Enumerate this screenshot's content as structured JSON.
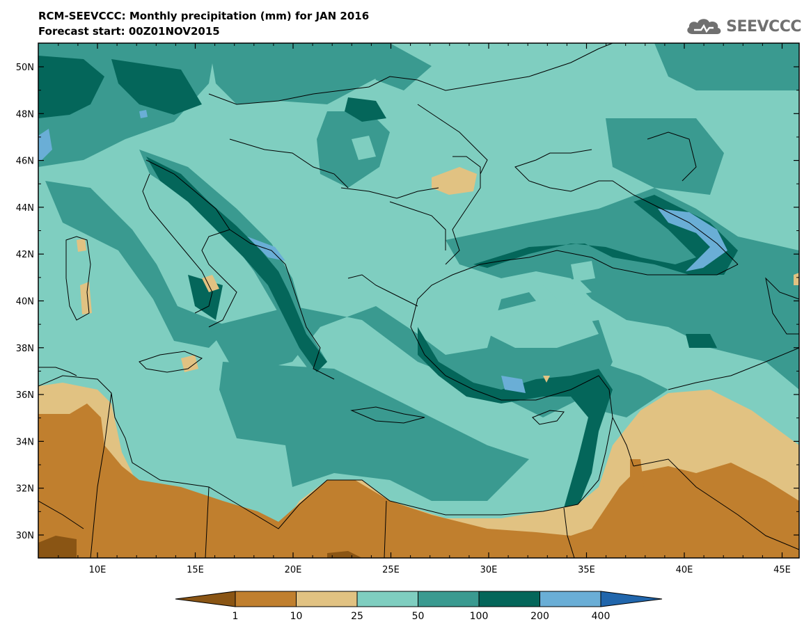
{
  "header": {
    "title": "RCM-SEEVCCC: Monthly precipitation (mm) for JAN 2016",
    "subtitle": "Forecast start: 00Z01NOV2015"
  },
  "logo": {
    "text": "SEEVCCC",
    "icon": "cloud-logo-icon"
  },
  "map": {
    "lat_ticks": [
      "50N",
      "48N",
      "46N",
      "44N",
      "42N",
      "40N",
      "38N",
      "36N",
      "34N",
      "32N",
      "30N"
    ],
    "lon_ticks": [
      "10E",
      "15E",
      "20E",
      "25E",
      "30E",
      "35E",
      "40E",
      "45E"
    ]
  },
  "colorbar": {
    "colors": [
      "#8a5514",
      "#c07f2e",
      "#e1c282",
      "#7fcec0",
      "#3a9a90",
      "#04665a",
      "#6aaed6",
      "#2166ac"
    ],
    "labels": [
      "1",
      "10",
      "25",
      "50",
      "100",
      "200",
      "400"
    ],
    "units": "mm"
  }
}
